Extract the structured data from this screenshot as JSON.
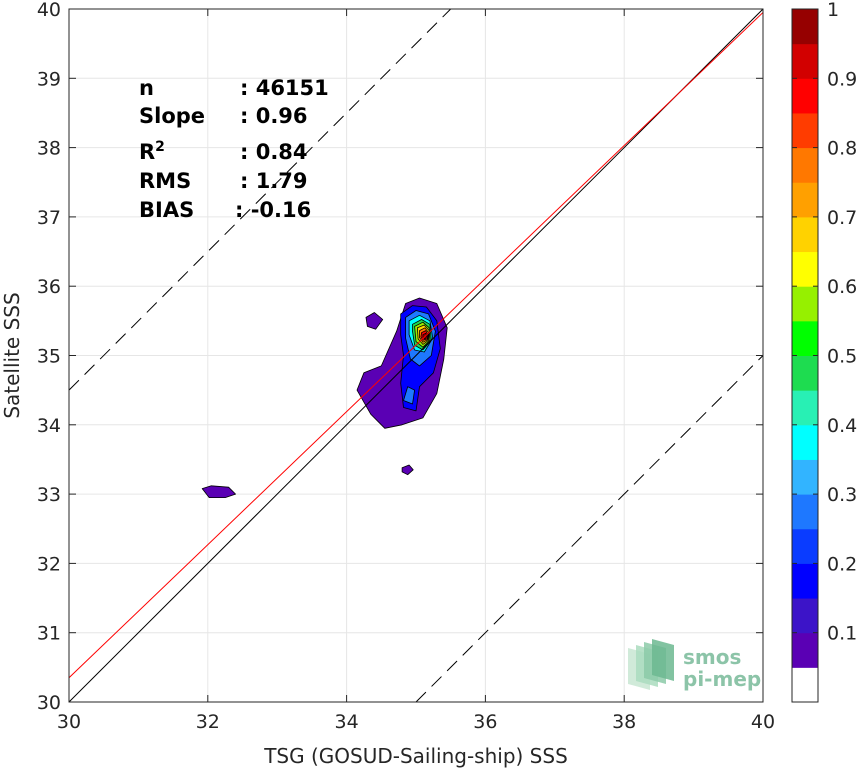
{
  "chart_data": {
    "type": "heatmap",
    "xlabel": "TSG (GOSUD-Sailing-ship) SSS",
    "ylabel": "Satellite SSS",
    "xlim": [
      30,
      40
    ],
    "ylim": [
      30,
      40
    ],
    "xticks": [
      "30",
      "32",
      "34",
      "36",
      "38",
      "40"
    ],
    "yticks": [
      "30",
      "31",
      "32",
      "33",
      "34",
      "35",
      "36",
      "37",
      "38",
      "39",
      "40"
    ],
    "grid": true,
    "stats": [
      {
        "label": "n",
        "value": ": 46151"
      },
      {
        "label": "Slope",
        "value": ": 0.96"
      },
      {
        "label": "R",
        "sup": "2",
        "value": ": 0.84"
      },
      {
        "label": "RMS",
        "value": ": 1.79"
      },
      {
        "label": "BIAS",
        "value": ": -0.16"
      }
    ],
    "lines": {
      "one_to_one": {
        "color": "#000000",
        "slope": 1,
        "intercept": 0
      },
      "fit": {
        "color": "#ff0000",
        "slope": 0.96,
        "intercept": 1.55
      },
      "upper_bound": {
        "style": "dashed",
        "slope": 1,
        "intercept": 4.5
      },
      "lower_bound": {
        "style": "dashed",
        "slope": 1,
        "intercept": -5
      }
    },
    "colorbar": {
      "range": [
        0,
        1
      ],
      "ticks": [
        "0.1",
        "0.2",
        "0.3",
        "0.4",
        "0.5",
        "0.6",
        "0.7",
        "0.8",
        "0.9",
        "1"
      ],
      "colors": [
        "#ffffff",
        "#5a00b4",
        "#3c14c8",
        "#0000ff",
        "#0a3cff",
        "#1e78ff",
        "#32b4ff",
        "#00ffff",
        "#28f0b4",
        "#1edc50",
        "#00ff00",
        "#96f000",
        "#ffff00",
        "#ffd200",
        "#ffa000",
        "#ff7800",
        "#ff3c00",
        "#ff0000",
        "#d20000",
        "#960000"
      ]
    },
    "density_contours": [
      {
        "level": 0.05,
        "points": [
          [
            34.25,
            34.75
          ],
          [
            34.15,
            34.5
          ],
          [
            34.35,
            34.15
          ],
          [
            34.55,
            33.95
          ],
          [
            34.8,
            34.0
          ],
          [
            35.1,
            34.1
          ],
          [
            35.3,
            34.45
          ],
          [
            35.4,
            34.95
          ],
          [
            35.45,
            35.4
          ],
          [
            35.3,
            35.75
          ],
          [
            35.05,
            35.83
          ],
          [
            34.85,
            35.75
          ],
          [
            34.72,
            35.35
          ],
          [
            34.5,
            34.85
          ]
        ]
      },
      {
        "level": 0.05,
        "points": [
          [
            34.28,
            35.55
          ],
          [
            34.4,
            35.62
          ],
          [
            34.52,
            35.52
          ],
          [
            34.42,
            35.38
          ],
          [
            34.3,
            35.42
          ]
        ]
      },
      {
        "level": 0.05,
        "points": [
          [
            31.92,
            33.08
          ],
          [
            32.05,
            33.12
          ],
          [
            32.3,
            33.1
          ],
          [
            32.4,
            33.0
          ],
          [
            32.25,
            32.95
          ],
          [
            32.02,
            32.95
          ]
        ]
      },
      {
        "level": 0.05,
        "points": [
          [
            34.8,
            33.38
          ],
          [
            34.9,
            33.42
          ],
          [
            34.96,
            33.35
          ],
          [
            34.88,
            33.28
          ],
          [
            34.8,
            33.32
          ]
        ]
      },
      {
        "level": 0.15,
        "points": [
          [
            34.78,
            35.6
          ],
          [
            34.95,
            35.72
          ],
          [
            35.15,
            35.7
          ],
          [
            35.3,
            35.5
          ],
          [
            35.35,
            35.1
          ],
          [
            35.25,
            34.75
          ],
          [
            35.05,
            34.55
          ],
          [
            35.0,
            34.2
          ],
          [
            34.82,
            34.25
          ],
          [
            34.78,
            34.6
          ],
          [
            34.82,
            35.0
          ],
          [
            34.78,
            35.3
          ]
        ]
      },
      {
        "level": 0.25,
        "points": [
          [
            34.85,
            35.55
          ],
          [
            35.0,
            35.65
          ],
          [
            35.18,
            35.6
          ],
          [
            35.28,
            35.35
          ],
          [
            35.22,
            35.0
          ],
          [
            35.05,
            34.85
          ],
          [
            34.92,
            34.95
          ],
          [
            34.85,
            35.25
          ]
        ]
      },
      {
        "level": 0.25,
        "points": [
          [
            34.82,
            34.35
          ],
          [
            34.88,
            34.55
          ],
          [
            34.98,
            34.5
          ],
          [
            34.95,
            34.3
          ]
        ]
      },
      {
        "level": 0.35,
        "points": [
          [
            34.9,
            35.5
          ],
          [
            35.05,
            35.58
          ],
          [
            35.2,
            35.5
          ],
          [
            35.24,
            35.25
          ],
          [
            35.12,
            35.05
          ],
          [
            34.98,
            35.08
          ],
          [
            34.9,
            35.3
          ]
        ]
      },
      {
        "level": 0.45,
        "points": [
          [
            34.95,
            35.45
          ],
          [
            35.08,
            35.52
          ],
          [
            35.2,
            35.45
          ],
          [
            35.22,
            35.22
          ],
          [
            35.1,
            35.08
          ],
          [
            34.98,
            35.15
          ],
          [
            34.95,
            35.35
          ]
        ]
      },
      {
        "level": 0.55,
        "points": [
          [
            34.98,
            35.42
          ],
          [
            35.1,
            35.48
          ],
          [
            35.19,
            35.4
          ],
          [
            35.2,
            35.22
          ],
          [
            35.1,
            35.12
          ],
          [
            35.0,
            35.2
          ]
        ]
      },
      {
        "level": 0.65,
        "points": [
          [
            35.02,
            35.4
          ],
          [
            35.12,
            35.44
          ],
          [
            35.19,
            35.36
          ],
          [
            35.18,
            35.22
          ],
          [
            35.1,
            35.16
          ],
          [
            35.03,
            35.24
          ]
        ]
      },
      {
        "level": 0.75,
        "points": [
          [
            35.05,
            35.36
          ],
          [
            35.13,
            35.4
          ],
          [
            35.18,
            35.33
          ],
          [
            35.17,
            35.23
          ],
          [
            35.1,
            35.19
          ],
          [
            35.05,
            35.26
          ]
        ]
      },
      {
        "level": 0.85,
        "points": [
          [
            35.08,
            35.33
          ],
          [
            35.14,
            35.36
          ],
          [
            35.17,
            35.3
          ],
          [
            35.16,
            35.24
          ],
          [
            35.1,
            35.22
          ],
          [
            35.07,
            35.27
          ]
        ]
      },
      {
        "level": 0.95,
        "points": [
          [
            35.1,
            35.3
          ],
          [
            35.14,
            35.32
          ],
          [
            35.16,
            35.28
          ],
          [
            35.13,
            35.24
          ],
          [
            35.1,
            35.26
          ]
        ]
      }
    ],
    "logo": {
      "line1": "smos",
      "line2": "pi-mep"
    }
  }
}
